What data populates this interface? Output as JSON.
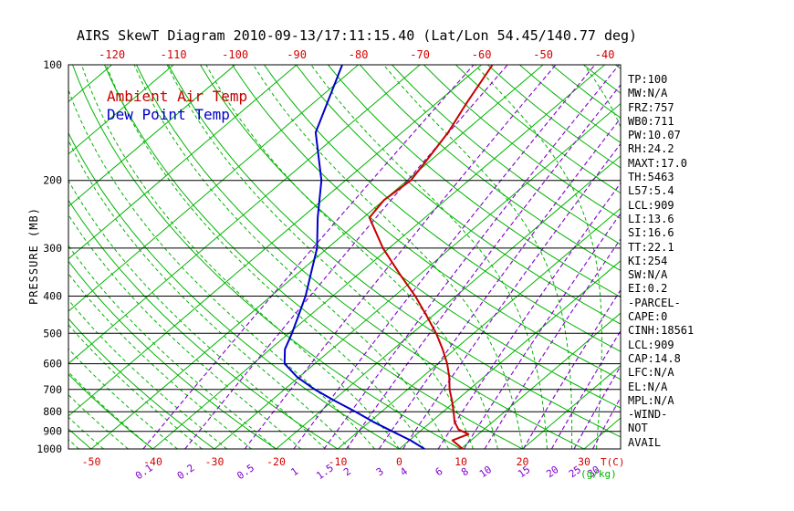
{
  "title": "AIRS SkewT Diagram 2010-09-13/17:11:15.40 (Lat/Lon 54.45/140.77 deg)",
  "legend": {
    "temp": "Ambient Air Temp",
    "dewpoint": "Dew Point Temp"
  },
  "axes": {
    "y_label": "PRESSURE (MB)",
    "temp_unit": "T(C)",
    "mixing_ratio_unit": "(g/kg)"
  },
  "colors": {
    "green": "#00b400",
    "purple": "#8000cc",
    "red": "#d40000",
    "blue": "#0000c8",
    "black": "#000000"
  },
  "indices": [
    "TP:100",
    "MW:N/A",
    "FRZ:757",
    "WB0:711",
    "PW:10.07",
    "RH:24.2",
    "MAXT:17.0",
    "TH:5463",
    "L57:5.4",
    "LCL:909",
    "LI:13.6",
    "SI:16.6",
    "TT:22.1",
    "KI:254",
    "SW:N/A",
    "EI:0.2",
    "-PARCEL-",
    "CAPE:0",
    "CINH:18561",
    "LCL:909",
    "CAP:14.8",
    "LFC:N/A",
    "EL:N/A",
    "MPL:N/A",
    "-WIND-",
    "NOT",
    "AVAIL"
  ],
  "chart_data": {
    "type": "line",
    "title": "AIRS SkewT Diagram 2010-09-13/17:11:15.40 (Lat/Lon 54.45/140.77 deg)",
    "y_axis": {
      "label": "PRESSURE (MB)",
      "scale": "log",
      "range": [
        100,
        1000
      ],
      "ticks": [
        100,
        200,
        300,
        400,
        500,
        600,
        700,
        800,
        900,
        1000
      ]
    },
    "x_axis": {
      "label": "T(C)",
      "top_ticks": [
        -120,
        -110,
        -100,
        -90,
        -80,
        -70,
        -60,
        -50,
        -40
      ],
      "bottom_ticks": [
        -50,
        -40,
        -30,
        -20,
        -10,
        0,
        10,
        20,
        30
      ]
    },
    "mixing_ratio_lines": [
      0.1,
      0.2,
      0.5,
      1,
      1.5,
      2,
      3,
      4,
      6,
      8,
      10,
      15,
      20,
      25,
      30
    ],
    "grid": {
      "isotherms": {
        "min": -120,
        "max": 30,
        "step": 10
      },
      "dry_adiabats": {
        "min": -60,
        "max": 200,
        "step": 10
      },
      "moist_adiabats": {
        "min": -52,
        "max": 36,
        "step": 4
      }
    },
    "series": [
      {
        "name": "Ambient Air Temp",
        "color": "#c80000",
        "points": [
          [
            1000,
            10.3
          ],
          [
            950,
            7.0
          ],
          [
            915,
            8.4
          ],
          [
            890,
            5.9
          ],
          [
            850,
            3.8
          ],
          [
            800,
            1.7
          ],
          [
            750,
            -0.6
          ],
          [
            700,
            -3.2
          ],
          [
            650,
            -5.6
          ],
          [
            600,
            -8.5
          ],
          [
            550,
            -12.0
          ],
          [
            500,
            -16.1
          ],
          [
            450,
            -21.0
          ],
          [
            400,
            -26.6
          ],
          [
            350,
            -33.4
          ],
          [
            300,
            -41.0
          ],
          [
            250,
            -49.0
          ],
          [
            225,
            -50.0
          ],
          [
            200,
            -49.4
          ],
          [
            175,
            -50.8
          ],
          [
            150,
            -52.5
          ],
          [
            125,
            -55.2
          ],
          [
            100,
            -58.2
          ]
        ]
      },
      {
        "name": "Dew Point Temp",
        "color": "#0000c8",
        "points": [
          [
            1000,
            4.1
          ],
          [
            950,
            0.2
          ],
          [
            900,
            -4.5
          ],
          [
            850,
            -9.4
          ],
          [
            800,
            -14.2
          ],
          [
            750,
            -19.6
          ],
          [
            700,
            -25.1
          ],
          [
            650,
            -30.3
          ],
          [
            600,
            -34.9
          ],
          [
            550,
            -37.6
          ],
          [
            500,
            -39.5
          ],
          [
            450,
            -41.8
          ],
          [
            400,
            -44.4
          ],
          [
            350,
            -47.8
          ],
          [
            300,
            -51.7
          ],
          [
            250,
            -57.4
          ],
          [
            200,
            -63.9
          ],
          [
            150,
            -74.0
          ],
          [
            100,
            -82.6
          ]
        ]
      }
    ]
  }
}
